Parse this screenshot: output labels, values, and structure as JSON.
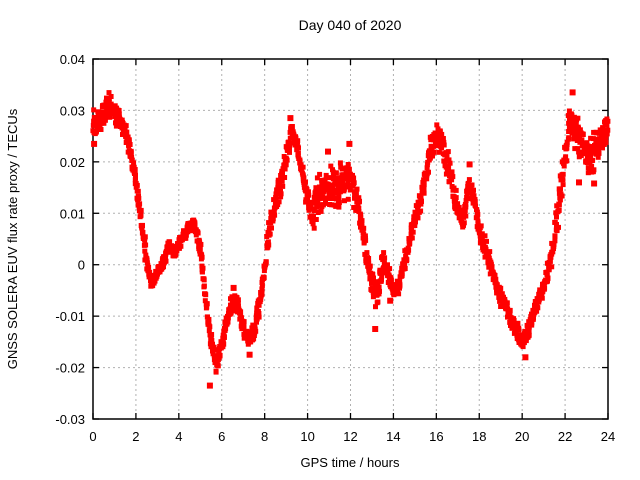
{
  "chart_data": {
    "type": "scatter",
    "title": "Day 040 of 2020",
    "xlabel": "GPS time / hours",
    "ylabel": "GNSS SOLERA EUV flux rate proxy / TECUs",
    "xlim": [
      0,
      24
    ],
    "ylim": [
      -0.03,
      0.04
    ],
    "xticks": {
      "values": [
        0,
        2,
        4,
        6,
        8,
        10,
        12,
        14,
        16,
        18,
        20,
        22,
        24
      ],
      "labels": [
        "0",
        "2",
        "4",
        "6",
        "8",
        "10",
        "12",
        "14",
        "16",
        "18",
        "20",
        "22",
        "24"
      ]
    },
    "yticks": {
      "values": [
        0.04,
        0.03,
        0.02,
        0.01,
        0,
        -0.01,
        -0.02,
        -0.03
      ],
      "labels": [
        "0.04",
        "0.03",
        "0.02",
        "0.01",
        "0",
        "-0.01",
        "-0.02",
        "-0.03"
      ]
    },
    "grid": true,
    "legend_position": "none",
    "point_shape": "filled-square",
    "colors": {
      "points": "#ff0000",
      "frame": "#000000",
      "grid": "#b0b0b0",
      "text": "#000000",
      "background": "#ffffff"
    },
    "series": [
      {
        "name": "euv-flux-rate-proxy",
        "x": [
          0,
          0.25,
          0.5,
          0.75,
          1,
          1.25,
          1.5,
          1.75,
          2,
          2.25,
          2.5,
          2.75,
          3,
          3.25,
          3.5,
          3.75,
          4,
          4.25,
          4.5,
          4.75,
          5,
          5.25,
          5.5,
          5.75,
          6,
          6.25,
          6.5,
          6.75,
          7,
          7.25,
          7.5,
          7.75,
          8,
          8.25,
          8.5,
          8.75,
          9,
          9.25,
          9.5,
          9.75,
          10,
          10.25,
          10.5,
          10.75,
          11,
          11.25,
          11.5,
          11.75,
          12,
          12.25,
          12.5,
          12.75,
          13,
          13.25,
          13.5,
          13.75,
          14,
          14.25,
          14.5,
          14.75,
          15,
          15.25,
          15.5,
          15.75,
          16,
          16.25,
          16.5,
          16.75,
          17,
          17.25,
          17.5,
          17.75,
          18,
          18.25,
          18.5,
          18.75,
          19,
          19.25,
          19.5,
          19.75,
          20,
          20.25,
          20.5,
          20.75,
          21,
          21.25,
          21.5,
          21.75,
          22,
          22.25,
          22.5,
          22.75,
          23,
          23.25,
          23.5,
          23.75,
          24
        ],
        "y": [
          0.027,
          0.0285,
          0.029,
          0.0315,
          0.03,
          0.028,
          0.026,
          0.022,
          0.016,
          0.009,
          0.001,
          -0.004,
          -0.001,
          0,
          0.004,
          0.002,
          0.004,
          0.006,
          0.007,
          0.008,
          0.003,
          -0.006,
          -0.015,
          -0.0195,
          -0.016,
          -0.011,
          -0.007,
          -0.008,
          -0.012,
          -0.015,
          -0.013,
          -0.008,
          -0.001,
          0.008,
          0.012,
          0.0155,
          0.021,
          0.026,
          0.023,
          0.018,
          0.013,
          0.01,
          0.013,
          0.0145,
          0.016,
          0.0145,
          0.015,
          0.0165,
          0.017,
          0.013,
          0.008,
          0.002,
          -0.004,
          -0.006,
          0.001,
          -0.002,
          -0.005,
          -0.004,
          0,
          0.005,
          0.009,
          0.012,
          0.017,
          0.023,
          0.025,
          0.024,
          0.02,
          0.015,
          0.011,
          0.008,
          0.016,
          0.013,
          0.007,
          0.003,
          0,
          -0.003,
          -0.006,
          -0.008,
          -0.011,
          -0.013,
          -0.0145,
          -0.013,
          -0.01,
          -0.007,
          -0.004,
          -0.001,
          0.005,
          0.013,
          0.021,
          0.028,
          0.026,
          0.023,
          0.022,
          0.021,
          0.023,
          0.025,
          0.027
        ],
        "band_halfwidth": [
          0.0035,
          0.003,
          0.003,
          0.0025,
          0.003,
          0.002,
          0.002,
          0.002,
          0.002,
          0.002,
          0.002,
          0.0015,
          0.0015,
          0.0015,
          0.0015,
          0.0015,
          0.0015,
          0.0015,
          0.0015,
          0.0015,
          0.002,
          0.002,
          0.002,
          0.002,
          0.002,
          0.002,
          0.002,
          0.002,
          0.002,
          0.002,
          0.002,
          0.0025,
          0.003,
          0.003,
          0.003,
          0.003,
          0.0025,
          0.002,
          0.002,
          0.002,
          0.003,
          0.0045,
          0.005,
          0.005,
          0.005,
          0.005,
          0.005,
          0.005,
          0.004,
          0.004,
          0.003,
          0.003,
          0.003,
          0.003,
          0.003,
          0.002,
          0.002,
          0.002,
          0.002,
          0.002,
          0.002,
          0.002,
          0.0025,
          0.003,
          0.003,
          0.003,
          0.003,
          0.003,
          0.003,
          0.002,
          0.002,
          0.002,
          0.003,
          0.003,
          0.002,
          0.002,
          0.002,
          0.002,
          0.002,
          0.0025,
          0.0025,
          0.0025,
          0.002,
          0.002,
          0.002,
          0.002,
          0.003,
          0.004,
          0.0045,
          0.0035,
          0.004,
          0.0045,
          0.0045,
          0.0045,
          0.004,
          0.003,
          0.003
        ],
        "outliers": [
          [
            0.05,
            0.0235
          ],
          [
            5.45,
            -0.0235
          ],
          [
            6.55,
            -0.0045
          ],
          [
            7.3,
            -0.0175
          ],
          [
            9.2,
            0.0285
          ],
          [
            10.95,
            0.022
          ],
          [
            11.95,
            0.0235
          ],
          [
            13.15,
            -0.0125
          ],
          [
            13.85,
            -0.007
          ],
          [
            17.55,
            0.0195
          ],
          [
            20.15,
            -0.018
          ],
          [
            22.35,
            0.0335
          ],
          [
            22.65,
            0.016
          ],
          [
            23.35,
            0.0158
          ]
        ]
      }
    ]
  }
}
